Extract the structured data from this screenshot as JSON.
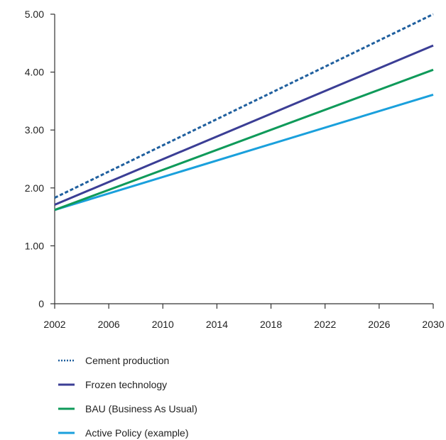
{
  "chart_data": {
    "type": "line",
    "title": "",
    "xlabel": "",
    "ylabel": "",
    "x": [
      2002,
      2030
    ],
    "xticks": [
      "2002",
      "2006",
      "2010",
      "2014",
      "2018",
      "2022",
      "2026",
      "2030"
    ],
    "yticks": [
      "0",
      "1.00",
      "2.00",
      "3.00",
      "4.00",
      "5.00"
    ],
    "xlim": [
      2002,
      2030
    ],
    "ylim": [
      0,
      5
    ],
    "grid": false,
    "legend_position": "bottom",
    "series": [
      {
        "name": "Cement production",
        "values": [
          1.83,
          5.0
        ],
        "color": "#1f5f9e",
        "style": "dotted"
      },
      {
        "name": "Frozen technology",
        "values": [
          1.71,
          4.46
        ],
        "color": "#3b3e95",
        "style": "solid"
      },
      {
        "name": "BAU (Business As Usual)",
        "values": [
          1.62,
          4.04
        ],
        "color": "#0f9a5a",
        "style": "solid"
      },
      {
        "name": "Active Policy (example)",
        "values": [
          1.62,
          3.61
        ],
        "color": "#1aa0dc",
        "style": "solid"
      }
    ]
  }
}
